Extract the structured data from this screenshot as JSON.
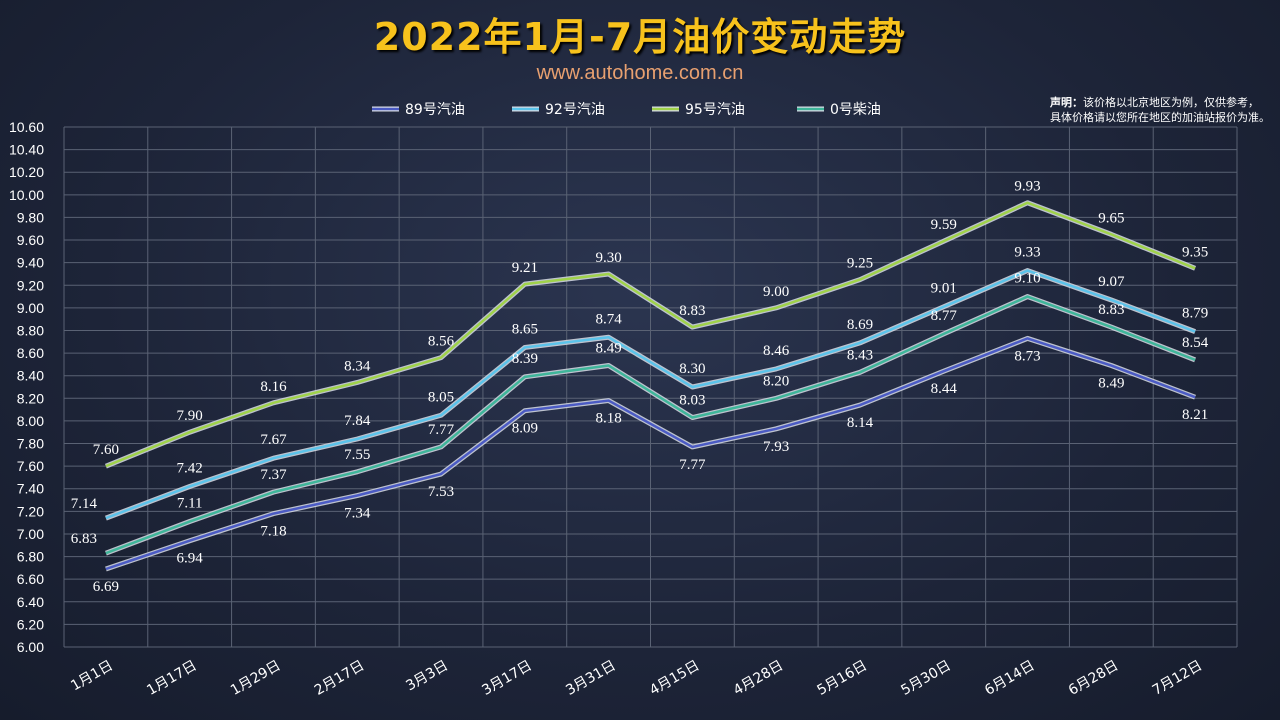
{
  "header": {
    "title": "2022年1月-7月油价变动走势",
    "subtitle": "www.autohome.com.cn"
  },
  "note": {
    "bold": "声明：",
    "line1": "该价格以北京地区为例，仅供参考，",
    "line2": "具体价格请以您所在地区的加油站报价为准。"
  },
  "chart_data": {
    "type": "line",
    "categories": [
      "1月1日",
      "1月17日",
      "1月29日",
      "2月17日",
      "3月3日",
      "3月17日",
      "3月31日",
      "4月15日",
      "4月28日",
      "5月16日",
      "5月30日",
      "6月14日",
      "6月28日",
      "7月12日"
    ],
    "ylim": [
      6.0,
      10.6
    ],
    "yticks": [
      "6.00",
      "6.20",
      "6.40",
      "6.60",
      "6.80",
      "7.00",
      "7.20",
      "7.40",
      "7.60",
      "7.80",
      "8.00",
      "8.20",
      "8.40",
      "8.60",
      "8.80",
      "9.00",
      "9.20",
      "9.40",
      "9.60",
      "9.80",
      "10.00",
      "10.20",
      "10.40",
      "10.60"
    ],
    "grid": true,
    "legend": "top",
    "series": [
      {
        "name": "89号汽油",
        "color": "#4b5bc4",
        "values": [
          6.69,
          6.94,
          7.18,
          7.34,
          7.53,
          8.09,
          8.18,
          7.77,
          7.93,
          8.14,
          8.44,
          8.73,
          8.49,
          8.21
        ]
      },
      {
        "name": "92号汽油",
        "color": "#5bc3ea",
        "values": [
          7.14,
          7.42,
          7.67,
          7.84,
          8.05,
          8.65,
          8.74,
          8.3,
          8.46,
          8.69,
          9.01,
          9.33,
          9.07,
          8.79
        ]
      },
      {
        "name": "95号汽油",
        "color": "#9fd24a",
        "values": [
          7.6,
          7.9,
          8.16,
          8.34,
          8.56,
          9.21,
          9.3,
          8.83,
          9.0,
          9.25,
          9.59,
          9.93,
          9.65,
          9.35
        ]
      },
      {
        "name": "0号柴油",
        "color": "#3fb59a",
        "values": [
          6.83,
          7.11,
          7.37,
          7.55,
          7.77,
          8.39,
          8.49,
          8.03,
          8.2,
          8.43,
          8.77,
          9.1,
          8.83,
          8.54
        ]
      }
    ]
  }
}
